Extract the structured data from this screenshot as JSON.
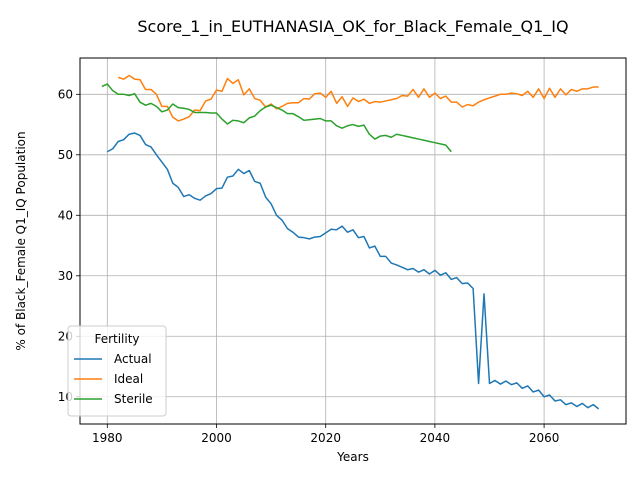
{
  "chart_data": {
    "type": "line",
    "title": "Score_1_in_EUTHANASIA_OK_for_Black_Female_Q1_IQ",
    "xlabel": "Years",
    "ylabel": "% of Black_Female Q1_IQ Population",
    "xlim": [
      1975,
      2075
    ],
    "ylim": [
      5.5,
      66
    ],
    "xticks": [
      1980,
      2000,
      2020,
      2040,
      2060
    ],
    "yticks": [
      10,
      20,
      30,
      40,
      50,
      60
    ],
    "grid": true,
    "legend": {
      "title": "Fertility",
      "position": "lower-left"
    },
    "series": [
      {
        "name": "Actual",
        "color": "#1f77b4",
        "x": [
          1980,
          1981,
          1982,
          1983,
          1984,
          1985,
          1986,
          1987,
          1988,
          1989,
          1990,
          1991,
          1992,
          1993,
          1994,
          1995,
          1996,
          1997,
          1998,
          1999,
          2000,
          2001,
          2002,
          2003,
          2004,
          2005,
          2006,
          2007,
          2008,
          2009,
          2010,
          2011,
          2012,
          2013,
          2014,
          2015,
          2016,
          2017,
          2018,
          2019,
          2020,
          2021,
          2022,
          2023,
          2024,
          2025,
          2026,
          2027,
          2028,
          2029,
          2030,
          2031,
          2032,
          2033,
          2034,
          2035,
          2036,
          2037,
          2038,
          2039,
          2040,
          2041,
          2042,
          2043,
          2044,
          2045,
          2046,
          2047,
          2048,
          2049,
          2050,
          2051,
          2052,
          2053,
          2054,
          2055,
          2056,
          2057,
          2058,
          2059,
          2060,
          2061,
          2062,
          2063,
          2064,
          2065,
          2066,
          2067,
          2068,
          2069,
          2070
        ],
        "values": [
          50.5,
          51.0,
          52.2,
          52.5,
          53.4,
          53.6,
          53.2,
          51.7,
          51.3,
          50.0,
          48.8,
          47.6,
          45.3,
          44.6,
          43.1,
          43.4,
          42.8,
          42.5,
          43.2,
          43.6,
          44.4,
          44.5,
          46.3,
          46.5,
          47.6,
          46.9,
          47.4,
          45.6,
          45.3,
          43.0,
          41.9,
          40.0,
          39.2,
          37.8,
          37.2,
          36.4,
          36.3,
          36.1,
          36.4,
          36.5,
          37.1,
          37.7,
          37.6,
          38.2,
          37.2,
          37.6,
          36.3,
          36.5,
          34.6,
          34.9,
          33.2,
          33.2,
          32.1,
          31.8,
          31.4,
          31.0,
          31.2,
          30.6,
          31.0,
          30.3,
          30.9,
          30.1,
          30.5,
          29.4,
          29.7,
          28.7,
          28.8,
          27.9,
          12.2,
          27.0,
          12.2,
          12.7,
          12.1,
          12.6,
          12.0,
          12.3,
          11.4,
          11.8,
          10.8,
          11.1,
          10.0,
          10.3,
          9.3,
          9.5,
          8.7,
          9.0,
          8.4,
          8.9,
          8.2,
          8.7,
          8.0
        ]
      },
      {
        "name": "Ideal",
        "color": "#ff7f0e",
        "x": [
          1982,
          1983,
          1984,
          1985,
          1986,
          1987,
          1988,
          1989,
          1990,
          1991,
          1992,
          1993,
          1994,
          1995,
          1996,
          1997,
          1998,
          1999,
          2000,
          2001,
          2002,
          2003,
          2004,
          2005,
          2006,
          2007,
          2008,
          2009,
          2010,
          2011,
          2012,
          2013,
          2014,
          2015,
          2016,
          2017,
          2018,
          2019,
          2020,
          2021,
          2022,
          2023,
          2024,
          2025,
          2026,
          2027,
          2028,
          2029,
          2030,
          2031,
          2032,
          2033,
          2034,
          2035,
          2036,
          2037,
          2038,
          2039,
          2040,
          2041,
          2042,
          2043,
          2044,
          2045,
          2046,
          2047,
          2048,
          2049,
          2050,
          2051,
          2052,
          2053,
          2054,
          2055,
          2056,
          2057,
          2058,
          2059,
          2060,
          2061,
          2062,
          2063,
          2064,
          2065,
          2066,
          2067,
          2068,
          2069,
          2070
        ],
        "values": [
          62.8,
          62.5,
          63.1,
          62.5,
          62.4,
          60.8,
          60.8,
          60.0,
          58.0,
          58.0,
          56.2,
          55.6,
          55.9,
          56.3,
          57.4,
          57.3,
          58.9,
          59.2,
          60.7,
          60.5,
          62.6,
          61.8,
          62.4,
          59.9,
          60.9,
          59.3,
          59.0,
          57.9,
          58.4,
          57.6,
          58.0,
          58.5,
          58.6,
          58.6,
          59.3,
          59.2,
          60.1,
          60.2,
          59.5,
          60.5,
          58.5,
          59.6,
          58.0,
          59.4,
          58.8,
          59.2,
          58.5,
          58.8,
          58.7,
          58.9,
          59.1,
          59.3,
          59.8,
          59.7,
          60.8,
          59.5,
          60.9,
          59.5,
          60.2,
          59.3,
          59.7,
          58.7,
          58.7,
          57.9,
          58.3,
          58.1,
          58.7,
          59.1,
          59.4,
          59.7,
          60.0,
          60.0,
          60.2,
          60.1,
          59.8,
          60.5,
          59.5,
          60.9,
          59.3,
          61.0,
          59.5,
          60.9,
          59.9,
          60.8,
          60.5,
          60.9,
          60.9,
          61.2,
          61.2
        ]
      },
      {
        "name": "Sterile",
        "color": "#2ca02c",
        "x": [
          1979,
          1980,
          1981,
          1982,
          1983,
          1984,
          1985,
          1986,
          1987,
          1988,
          1989,
          1990,
          1991,
          1992,
          1993,
          1994,
          1995,
          1996,
          1997,
          1998,
          1999,
          2000,
          2001,
          2002,
          2003,
          2004,
          2005,
          2006,
          2007,
          2008,
          2009,
          2010,
          2011,
          2012,
          2013,
          2014,
          2015,
          2016,
          2017,
          2018,
          2019,
          2020,
          2021,
          2022,
          2023,
          2024,
          2025,
          2026,
          2027,
          2028,
          2029,
          2030,
          2031,
          2032,
          2033,
          2034,
          2035,
          2036,
          2037,
          2038,
          2039,
          2040,
          2041,
          2042,
          2043
        ],
        "values": [
          61.3,
          61.7,
          60.6,
          60.0,
          60.0,
          59.8,
          60.1,
          58.7,
          58.2,
          58.5,
          58.0,
          57.1,
          57.4,
          58.4,
          57.8,
          57.7,
          57.5,
          57.0,
          57.0,
          57.0,
          56.9,
          56.9,
          55.9,
          55.1,
          55.7,
          55.6,
          55.3,
          56.1,
          56.4,
          57.3,
          57.9,
          58.2,
          57.8,
          57.4,
          56.8,
          56.8,
          56.3,
          55.7,
          55.8,
          55.9,
          56.0,
          55.6,
          55.6,
          54.8,
          54.4,
          54.8,
          55.0,
          54.7,
          54.9,
          53.4,
          52.6,
          53.1,
          53.2,
          52.9,
          53.4,
          53.2,
          53.0,
          52.8,
          52.6,
          52.4,
          52.2,
          52.0,
          51.8,
          51.6,
          50.5
        ]
      }
    ]
  }
}
